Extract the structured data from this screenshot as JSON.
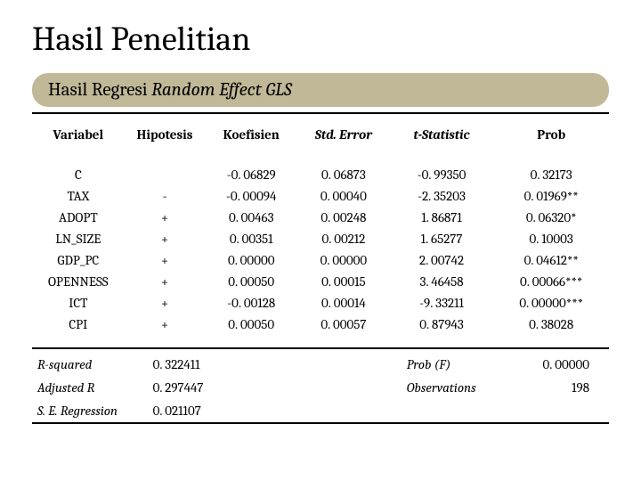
{
  "title": "Hasil Penelitian",
  "subtitle_plain": "Hasil Regresi ",
  "subtitle_italic": "Random Effect GLS",
  "headers": {
    "variabel": "Variabel",
    "hipotesis": "Hipotesis",
    "koefisien": "Koefisien",
    "stderror": "Std. Error",
    "tstat": "t-Statistic",
    "prob": "Prob"
  },
  "rows": [
    {
      "var": "C",
      "hip": "",
      "koef": "-0. 06829",
      "se": "0. 06873",
      "t": "-0. 99350",
      "p": "0. 32173"
    },
    {
      "var": "TAX",
      "hip": "-",
      "koef": "-0. 00094",
      "se": "0. 00040",
      "t": "-2. 35203",
      "p": "0. 01969**"
    },
    {
      "var": "ADOPT",
      "hip": "+",
      "koef": "0. 00463",
      "se": "0. 00248",
      "t": "1. 86871",
      "p": "0. 06320*"
    },
    {
      "var": "LN_SIZE",
      "hip": "+",
      "koef": "0. 00351",
      "se": "0. 00212",
      "t": "1. 65277",
      "p": "0. 10003"
    },
    {
      "var": "GDP_PC",
      "hip": "+",
      "koef": "0. 00000",
      "se": "0. 00000",
      "t": "2. 00742",
      "p": "0. 04612**"
    },
    {
      "var": "OPENNESS",
      "hip": "+",
      "koef": "0. 00050",
      "se": "0. 00015",
      "t": "3. 46458",
      "p": "0. 00066***"
    },
    {
      "var": "ICT",
      "hip": "+",
      "koef": "-0. 00128",
      "se": "0. 00014",
      "t": "-9. 33211",
      "p": "0. 00000***"
    },
    {
      "var": "CPI",
      "hip": "+",
      "koef": "0. 00050",
      "se": "0. 00057",
      "t": "0. 87943",
      "p": "0. 38028"
    }
  ],
  "stats": {
    "rsq_label": "R-squared",
    "rsq_val": "0. 322411",
    "probf_label": "Prob (F)",
    "probf_val": "0. 00000",
    "adjr_label": "Adjusted R",
    "adjr_val": "0. 297447",
    "obs_label": "Observations",
    "obs_val": "198",
    "ser_label": "S. E. Regression",
    "ser_val": "0. 021107"
  },
  "colors": {
    "subtitle_bg": "#c1b897",
    "text": "#000000",
    "bg": "#ffffff",
    "rule": "#000000"
  },
  "font_sizes": {
    "title": 38,
    "subtitle": 21,
    "body": 15
  }
}
